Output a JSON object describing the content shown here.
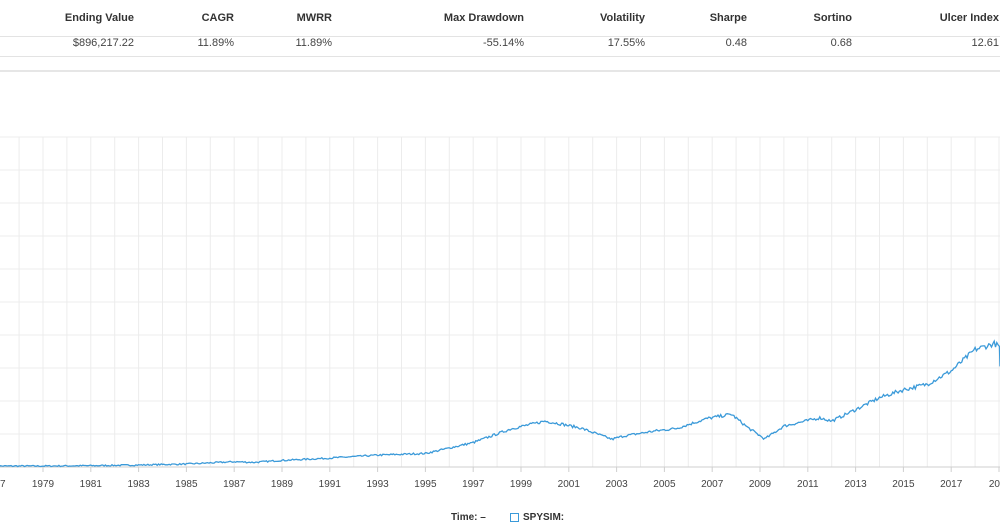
{
  "stats": {
    "headers": [
      "Ending Value",
      "CAGR",
      "MWRR",
      "Max Drawdown",
      "Volatility",
      "Sharpe",
      "Sortino",
      "Ulcer Index"
    ],
    "values": [
      "$896,217.22",
      "11.89%",
      "11.89%",
      "-55.14%",
      "17.55%",
      "0.48",
      "0.68",
      "12.61"
    ]
  },
  "legend": {
    "time_label": "Time:",
    "time_value": "–",
    "series_label": "SPYSIM:",
    "series_color": "#3b9ad9"
  },
  "chart_data": {
    "type": "line",
    "x_tick_labels": [
      "7",
      "1979",
      "1981",
      "1983",
      "1985",
      "1987",
      "1989",
      "1991",
      "1993",
      "1995",
      "1997",
      "1999",
      "2001",
      "2003",
      "2005",
      "2007",
      "2009",
      "2011",
      "2013",
      "2015",
      "2017",
      "20"
    ],
    "x_range": [
      1977.0,
      2019.8
    ],
    "y_axis_range_fraction": [
      0,
      1
    ],
    "grid": true,
    "series": [
      {
        "name": "SPYSIM",
        "color": "#3b9ad9",
        "points": [
          [
            1977.0,
            0.003
          ],
          [
            1979.0,
            0.003
          ],
          [
            1981.0,
            0.004
          ],
          [
            1983.0,
            0.006
          ],
          [
            1985.0,
            0.009
          ],
          [
            1987.0,
            0.016
          ],
          [
            1987.8,
            0.014
          ],
          [
            1989.0,
            0.02
          ],
          [
            1991.0,
            0.027
          ],
          [
            1993.0,
            0.036
          ],
          [
            1995.0,
            0.041
          ],
          [
            1997.0,
            0.074
          ],
          [
            1998.6,
            0.116
          ],
          [
            2000.0,
            0.139
          ],
          [
            2000.7,
            0.13
          ],
          [
            2001.5,
            0.118
          ],
          [
            2002.8,
            0.084
          ],
          [
            2003.3,
            0.094
          ],
          [
            2004.5,
            0.108
          ],
          [
            2005.5,
            0.117
          ],
          [
            2006.8,
            0.147
          ],
          [
            2007.8,
            0.16
          ],
          [
            2008.5,
            0.119
          ],
          [
            2009.2,
            0.085
          ],
          [
            2010.0,
            0.124
          ],
          [
            2011.5,
            0.149
          ],
          [
            2012.0,
            0.139
          ],
          [
            2013.0,
            0.174
          ],
          [
            2014.0,
            0.21
          ],
          [
            2015.0,
            0.234
          ],
          [
            2016.0,
            0.251
          ],
          [
            2017.0,
            0.291
          ],
          [
            2018.0,
            0.356
          ],
          [
            2018.8,
            0.374
          ],
          [
            2019.4,
            0.349
          ],
          [
            2019.8,
            0.305
          ]
        ]
      }
    ]
  }
}
